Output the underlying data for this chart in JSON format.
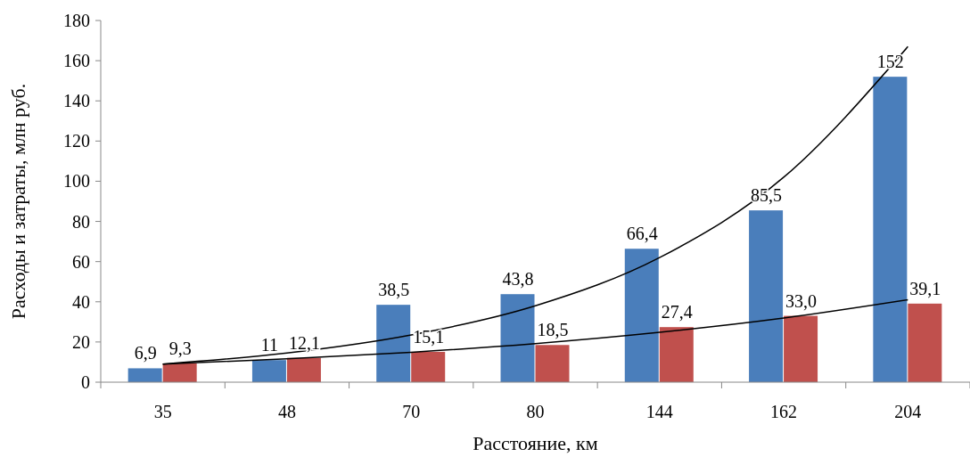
{
  "chart_data": {
    "type": "bar",
    "xlabel": "Расстояние, км",
    "ylabel": "Расходы и затраты, млн руб.",
    "categories": [
      "35",
      "48",
      "70",
      "80",
      "144",
      "162",
      "204"
    ],
    "ylim": [
      0,
      180
    ],
    "yticks": [
      0,
      20,
      40,
      60,
      80,
      100,
      120,
      140,
      160,
      180
    ],
    "grid": false,
    "series": [
      {
        "color": "#4a7ebb",
        "values": [
          6.9,
          11,
          38.5,
          43.8,
          66.4,
          85.5,
          152
        ],
        "value_labels": [
          "6,9",
          "11",
          "38,5",
          "43,8",
          "66,4",
          "85,5",
          "152"
        ]
      },
      {
        "color": "#c0504d",
        "values": [
          9.3,
          12.1,
          15.1,
          18.5,
          27.4,
          33.0,
          39.1
        ],
        "value_labels": [
          "9,3",
          "12,1",
          "15,1",
          "18,5",
          "27,4",
          "33,0",
          "39,1"
        ]
      },
      {
        "type": "line",
        "color": "#000000",
        "values": [
          9,
          14.5,
          23.5,
          38,
          62,
          102,
          167
        ]
      },
      {
        "type": "line",
        "color": "#000000",
        "values": [
          9,
          11.6,
          14.9,
          19.2,
          24.8,
          31.9,
          41
        ]
      }
    ]
  }
}
